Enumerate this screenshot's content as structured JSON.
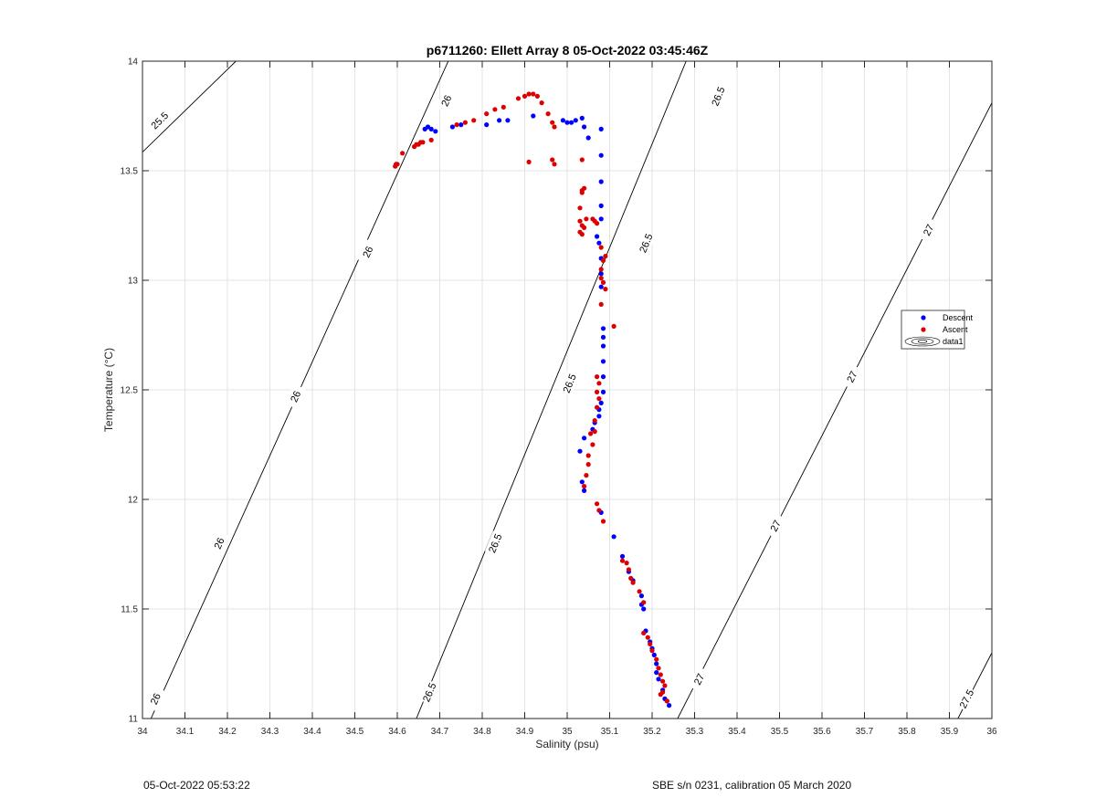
{
  "chart_data": {
    "type": "scatter",
    "title": "p6711260: Ellett Array 8 05-Oct-2022 03:45:46Z",
    "xlabel": "Salinity (psu)",
    "ylabel": "Temperature (°C)",
    "xlim": [
      34,
      36
    ],
    "ylim": [
      11,
      14
    ],
    "xticks": [
      "34",
      "34.1",
      "34.2",
      "34.3",
      "34.4",
      "34.5",
      "34.6",
      "34.7",
      "34.8",
      "34.9",
      "35",
      "35.1",
      "35.2",
      "35.3",
      "35.4",
      "35.5",
      "35.6",
      "35.7",
      "35.8",
      "35.9",
      "36"
    ],
    "yticks": [
      "11",
      "11.5",
      "12",
      "12.5",
      "13",
      "13.5",
      "14"
    ],
    "grid": true,
    "legend_position": "right",
    "series": [
      {
        "name": "Descent",
        "color": "#0000ff",
        "points": [
          [
            34.665,
            13.69
          ],
          [
            34.672,
            13.7
          ],
          [
            34.68,
            13.69
          ],
          [
            34.69,
            13.68
          ],
          [
            34.73,
            13.7
          ],
          [
            34.75,
            13.71
          ],
          [
            34.81,
            13.71
          ],
          [
            34.84,
            13.73
          ],
          [
            34.86,
            13.73
          ],
          [
            34.92,
            13.75
          ],
          [
            34.99,
            13.73
          ],
          [
            35.0,
            13.72
          ],
          [
            35.01,
            13.72
          ],
          [
            35.02,
            13.73
          ],
          [
            35.035,
            13.74
          ],
          [
            35.04,
            13.7
          ],
          [
            35.05,
            13.65
          ],
          [
            35.08,
            13.69
          ],
          [
            35.08,
            13.57
          ],
          [
            35.08,
            13.45
          ],
          [
            35.08,
            13.34
          ],
          [
            35.08,
            13.28
          ],
          [
            35.07,
            13.2
          ],
          [
            35.075,
            13.17
          ],
          [
            35.08,
            13.1
          ],
          [
            35.08,
            13.03
          ],
          [
            35.08,
            12.97
          ],
          [
            35.085,
            12.78
          ],
          [
            35.085,
            12.74
          ],
          [
            35.085,
            12.7
          ],
          [
            35.085,
            12.63
          ],
          [
            35.085,
            12.56
          ],
          [
            35.085,
            12.49
          ],
          [
            35.08,
            12.44
          ],
          [
            35.075,
            12.41
          ],
          [
            35.075,
            12.38
          ],
          [
            35.065,
            12.35
          ],
          [
            35.06,
            12.32
          ],
          [
            35.04,
            12.28
          ],
          [
            35.03,
            12.22
          ],
          [
            35.035,
            12.08
          ],
          [
            35.04,
            12.04
          ],
          [
            35.08,
            11.94
          ],
          [
            35.11,
            11.83
          ],
          [
            35.13,
            11.74
          ],
          [
            35.145,
            11.67
          ],
          [
            35.155,
            11.63
          ],
          [
            35.175,
            11.56
          ],
          [
            35.175,
            11.52
          ],
          [
            35.18,
            11.5
          ],
          [
            35.185,
            11.4
          ],
          [
            35.195,
            11.35
          ],
          [
            35.2,
            11.32
          ],
          [
            35.205,
            11.29
          ],
          [
            35.21,
            11.25
          ],
          [
            35.21,
            11.21
          ],
          [
            35.215,
            11.18
          ],
          [
            35.225,
            11.13
          ],
          [
            35.23,
            11.09
          ],
          [
            35.235,
            11.08
          ],
          [
            35.24,
            11.06
          ]
        ]
      },
      {
        "name": "Ascent",
        "color": "#dd0000",
        "points": [
          [
            34.595,
            13.52
          ],
          [
            34.597,
            13.53
          ],
          [
            34.6,
            13.53
          ],
          [
            34.612,
            13.58
          ],
          [
            34.64,
            13.61
          ],
          [
            34.645,
            13.62
          ],
          [
            34.65,
            13.62
          ],
          [
            34.655,
            13.63
          ],
          [
            34.66,
            13.63
          ],
          [
            34.68,
            13.64
          ],
          [
            34.74,
            13.71
          ],
          [
            34.76,
            13.72
          ],
          [
            34.78,
            13.73
          ],
          [
            34.81,
            13.76
          ],
          [
            34.83,
            13.78
          ],
          [
            34.85,
            13.79
          ],
          [
            34.885,
            13.83
          ],
          [
            34.9,
            13.84
          ],
          [
            34.91,
            13.85
          ],
          [
            34.92,
            13.85
          ],
          [
            34.93,
            13.84
          ],
          [
            34.94,
            13.81
          ],
          [
            34.955,
            13.76
          ],
          [
            34.965,
            13.72
          ],
          [
            34.97,
            13.7
          ],
          [
            34.91,
            13.54
          ],
          [
            34.965,
            13.55
          ],
          [
            34.97,
            13.53
          ],
          [
            35.035,
            13.55
          ],
          [
            35.04,
            13.42
          ],
          [
            35.035,
            13.41
          ],
          [
            35.035,
            13.4
          ],
          [
            35.03,
            13.33
          ],
          [
            35.03,
            13.27
          ],
          [
            35.035,
            13.25
          ],
          [
            35.03,
            13.22
          ],
          [
            35.035,
            13.21
          ],
          [
            35.04,
            13.24
          ],
          [
            35.045,
            13.28
          ],
          [
            35.06,
            13.28
          ],
          [
            35.065,
            13.27
          ],
          [
            35.07,
            13.26
          ],
          [
            35.08,
            13.15
          ],
          [
            35.09,
            13.11
          ],
          [
            35.085,
            13.09
          ],
          [
            35.08,
            13.05
          ],
          [
            35.08,
            13.01
          ],
          [
            35.085,
            12.99
          ],
          [
            35.09,
            12.96
          ],
          [
            35.08,
            12.89
          ],
          [
            35.11,
            12.79
          ],
          [
            35.07,
            12.56
          ],
          [
            35.075,
            12.53
          ],
          [
            35.07,
            12.49
          ],
          [
            35.075,
            12.46
          ],
          [
            35.07,
            12.42
          ],
          [
            35.065,
            12.36
          ],
          [
            35.065,
            12.31
          ],
          [
            35.055,
            12.3
          ],
          [
            35.06,
            12.25
          ],
          [
            35.05,
            12.2
          ],
          [
            35.05,
            12.16
          ],
          [
            35.045,
            12.11
          ],
          [
            35.04,
            12.06
          ],
          [
            35.07,
            11.98
          ],
          [
            35.075,
            11.95
          ],
          [
            35.085,
            11.9
          ],
          [
            35.13,
            11.72
          ],
          [
            35.14,
            11.71
          ],
          [
            35.145,
            11.68
          ],
          [
            35.15,
            11.64
          ],
          [
            35.155,
            11.62
          ],
          [
            35.17,
            11.58
          ],
          [
            35.18,
            11.53
          ],
          [
            35.18,
            11.39
          ],
          [
            35.19,
            11.37
          ],
          [
            35.195,
            11.34
          ],
          [
            35.2,
            11.31
          ],
          [
            35.21,
            11.27
          ],
          [
            35.215,
            11.23
          ],
          [
            35.22,
            11.2
          ],
          [
            35.225,
            11.17
          ],
          [
            35.23,
            11.15
          ],
          [
            35.225,
            11.12
          ],
          [
            35.22,
            11.11
          ],
          [
            35.235,
            11.08
          ]
        ]
      },
      {
        "name": "data1",
        "contours": [
          {
            "label": "25.5",
            "points": [
              [
                34.0,
                13.585
              ],
              [
                34.22,
                14.0
              ]
            ]
          },
          {
            "label": "26",
            "points": [
              [
                34.02,
                11.0
              ],
              [
                34.72,
                14.0
              ]
            ]
          },
          {
            "label": "26.5",
            "points": [
              [
                34.645,
                11.0
              ],
              [
                35.28,
                14.0
              ]
            ]
          },
          {
            "label": "27",
            "points": [
              [
                35.26,
                11.0
              ],
              [
                36.0,
                13.81
              ]
            ]
          },
          {
            "label": "27.5",
            "points": [
              [
                35.92,
                11.0
              ],
              [
                36.0,
                11.3
              ]
            ]
          }
        ],
        "contour_labels": [
          {
            "text": "25.5",
            "at": [
              34.04,
              13.73
            ]
          },
          {
            "text": "26",
            "at": [
              34.715,
              13.82
            ]
          },
          {
            "text": "26",
            "at": [
              34.53,
              13.13
            ]
          },
          {
            "text": "26",
            "at": [
              34.36,
              12.47
            ]
          },
          {
            "text": "26",
            "at": [
              34.18,
              11.8
            ]
          },
          {
            "text": "26",
            "at": [
              34.03,
              11.09
            ]
          },
          {
            "text": "26.5",
            "at": [
              35.355,
              13.84
            ]
          },
          {
            "text": "26.5",
            "at": [
              35.185,
              13.17
            ]
          },
          {
            "text": "26.5",
            "at": [
              35.005,
              12.53
            ]
          },
          {
            "text": "26.5",
            "at": [
              34.83,
              11.8
            ]
          },
          {
            "text": "26.5",
            "at": [
              34.675,
              11.12
            ]
          },
          {
            "text": "27",
            "at": [
              35.85,
              13.23
            ]
          },
          {
            "text": "27",
            "at": [
              35.67,
              12.56
            ]
          },
          {
            "text": "27",
            "at": [
              35.49,
              11.88
            ]
          },
          {
            "text": "27",
            "at": [
              35.31,
              11.18
            ]
          },
          {
            "text": "27.5",
            "at": [
              35.94,
              11.09
            ]
          }
        ]
      }
    ]
  },
  "footer": {
    "timestamp": "05-Oct-2022 05:53:22",
    "calibration": "SBE s/n 0231, calibration 05 March 2020"
  }
}
